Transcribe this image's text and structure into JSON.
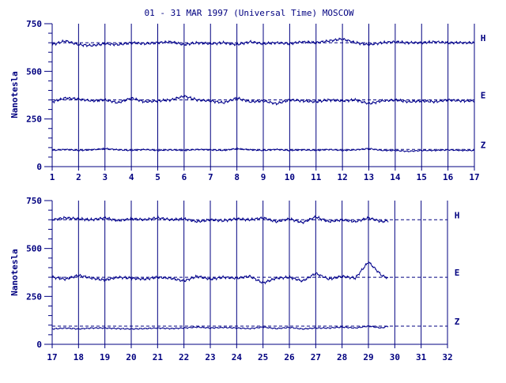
{
  "title": "01 - 31 MAR 1997 (Universal Time) MOSCOW",
  "colors": {
    "ink": "#000080",
    "trace": "#00008b",
    "background": "#ffffff"
  },
  "chart_data": [
    {
      "type": "line",
      "title": "01 - 31 MAR 1997 (Universal Time) MOSCOW",
      "ylabel": "Nanotesla",
      "xlabel": "",
      "xlim": [
        1,
        17
      ],
      "ylim": [
        0,
        750
      ],
      "x_ticks": [
        "1",
        "2",
        "3",
        "4",
        "5",
        "6",
        "7",
        "8",
        "9",
        "10",
        "11",
        "12",
        "13",
        "14",
        "15",
        "16",
        "17"
      ],
      "y_ticks": [
        "0",
        "250",
        "500",
        "750"
      ],
      "grid": "vertical lines at each day",
      "series": [
        {
          "name": "H",
          "baseline": 650,
          "x": [
            1.0,
            1.5,
            2.0,
            2.5,
            3.0,
            3.5,
            4.0,
            4.5,
            5.0,
            5.5,
            6.0,
            6.5,
            7.0,
            7.5,
            8.0,
            8.5,
            9.0,
            9.5,
            10.0,
            10.5,
            11.0,
            11.5,
            12.0,
            12.5,
            13.0,
            13.5,
            14.0,
            14.5,
            15.0,
            15.5,
            16.0,
            16.5,
            17.0
          ],
          "values": [
            640,
            660,
            640,
            635,
            645,
            640,
            650,
            645,
            650,
            655,
            640,
            650,
            645,
            650,
            640,
            655,
            645,
            650,
            645,
            655,
            650,
            660,
            670,
            650,
            640,
            650,
            655,
            650,
            650,
            655,
            650,
            650,
            650
          ]
        },
        {
          "name": "E",
          "baseline": 350,
          "x": [
            1.0,
            1.5,
            2.0,
            2.5,
            3.0,
            3.5,
            4.0,
            4.5,
            5.0,
            5.5,
            6.0,
            6.5,
            7.0,
            7.5,
            8.0,
            8.5,
            9.0,
            9.5,
            10.0,
            10.5,
            11.0,
            11.5,
            12.0,
            12.5,
            13.0,
            13.5,
            14.0,
            14.5,
            15.0,
            15.5,
            16.0,
            16.5,
            17.0
          ],
          "values": [
            340,
            360,
            355,
            345,
            350,
            335,
            360,
            340,
            345,
            350,
            370,
            350,
            345,
            335,
            360,
            340,
            345,
            330,
            350,
            345,
            340,
            350,
            345,
            350,
            330,
            345,
            350,
            340,
            345,
            340,
            350,
            345,
            345
          ]
        },
        {
          "name": "Z",
          "baseline": 90,
          "x": [
            1.0,
            1.5,
            2.0,
            2.5,
            3.0,
            3.5,
            4.0,
            4.5,
            5.0,
            5.5,
            6.0,
            6.5,
            7.0,
            7.5,
            8.0,
            8.5,
            9.0,
            9.5,
            10.0,
            10.5,
            11.0,
            11.5,
            12.0,
            12.5,
            13.0,
            13.5,
            14.0,
            14.5,
            15.0,
            15.5,
            16.0,
            16.5,
            17.0
          ],
          "values": [
            85,
            90,
            85,
            88,
            95,
            88,
            85,
            90,
            85,
            88,
            85,
            90,
            88,
            85,
            95,
            88,
            85,
            90,
            85,
            88,
            85,
            90,
            85,
            88,
            95,
            85,
            85,
            80,
            85,
            85,
            88,
            85,
            85
          ]
        }
      ]
    },
    {
      "type": "line",
      "title": "",
      "ylabel": "Nanotesla",
      "xlabel": "",
      "xlim": [
        17,
        32
      ],
      "ylim": [
        0,
        750
      ],
      "x_ticks": [
        "17",
        "18",
        "19",
        "20",
        "21",
        "22",
        "23",
        "24",
        "25",
        "26",
        "27",
        "28",
        "29",
        "30",
        "31",
        "32"
      ],
      "y_ticks": [
        "0",
        "250",
        "500",
        "750"
      ],
      "grid": "vertical lines at each day",
      "series": [
        {
          "name": "H",
          "baseline": 650,
          "x": [
            17.0,
            17.5,
            18.0,
            18.5,
            19.0,
            19.5,
            20.0,
            20.5,
            21.0,
            21.5,
            22.0,
            22.5,
            23.0,
            23.5,
            24.0,
            24.5,
            25.0,
            25.5,
            26.0,
            26.5,
            27.0,
            27.5,
            28.0,
            28.5,
            29.0,
            29.5,
            29.75
          ],
          "values": [
            650,
            660,
            655,
            650,
            660,
            645,
            655,
            650,
            660,
            650,
            655,
            640,
            650,
            645,
            655,
            650,
            660,
            640,
            655,
            635,
            665,
            640,
            650,
            640,
            660,
            640,
            645
          ]
        },
        {
          "name": "E",
          "baseline": 350,
          "x": [
            17.0,
            17.5,
            18.0,
            18.5,
            19.0,
            19.5,
            20.0,
            20.5,
            21.0,
            21.5,
            22.0,
            22.5,
            23.0,
            23.5,
            24.0,
            24.5,
            25.0,
            25.5,
            26.0,
            26.5,
            27.0,
            27.5,
            28.0,
            28.5,
            29.0,
            29.5,
            29.75
          ],
          "values": [
            350,
            340,
            360,
            345,
            335,
            350,
            345,
            340,
            350,
            345,
            330,
            355,
            340,
            350,
            345,
            355,
            320,
            345,
            350,
            330,
            370,
            340,
            355,
            345,
            430,
            360,
            345
          ]
        },
        {
          "name": "Z",
          "baseline": 95,
          "x": [
            17.0,
            17.5,
            18.0,
            18.5,
            19.0,
            19.5,
            20.0,
            20.5,
            21.0,
            21.5,
            22.0,
            22.5,
            23.0,
            23.5,
            24.0,
            24.5,
            25.0,
            25.5,
            26.0,
            26.5,
            27.0,
            27.5,
            28.0,
            28.5,
            29.0,
            29.5,
            29.75
          ],
          "values": [
            80,
            85,
            80,
            85,
            85,
            82,
            80,
            82,
            85,
            82,
            85,
            90,
            85,
            88,
            85,
            82,
            90,
            82,
            88,
            80,
            85,
            85,
            90,
            85,
            95,
            85,
            95
          ]
        }
      ]
    }
  ]
}
